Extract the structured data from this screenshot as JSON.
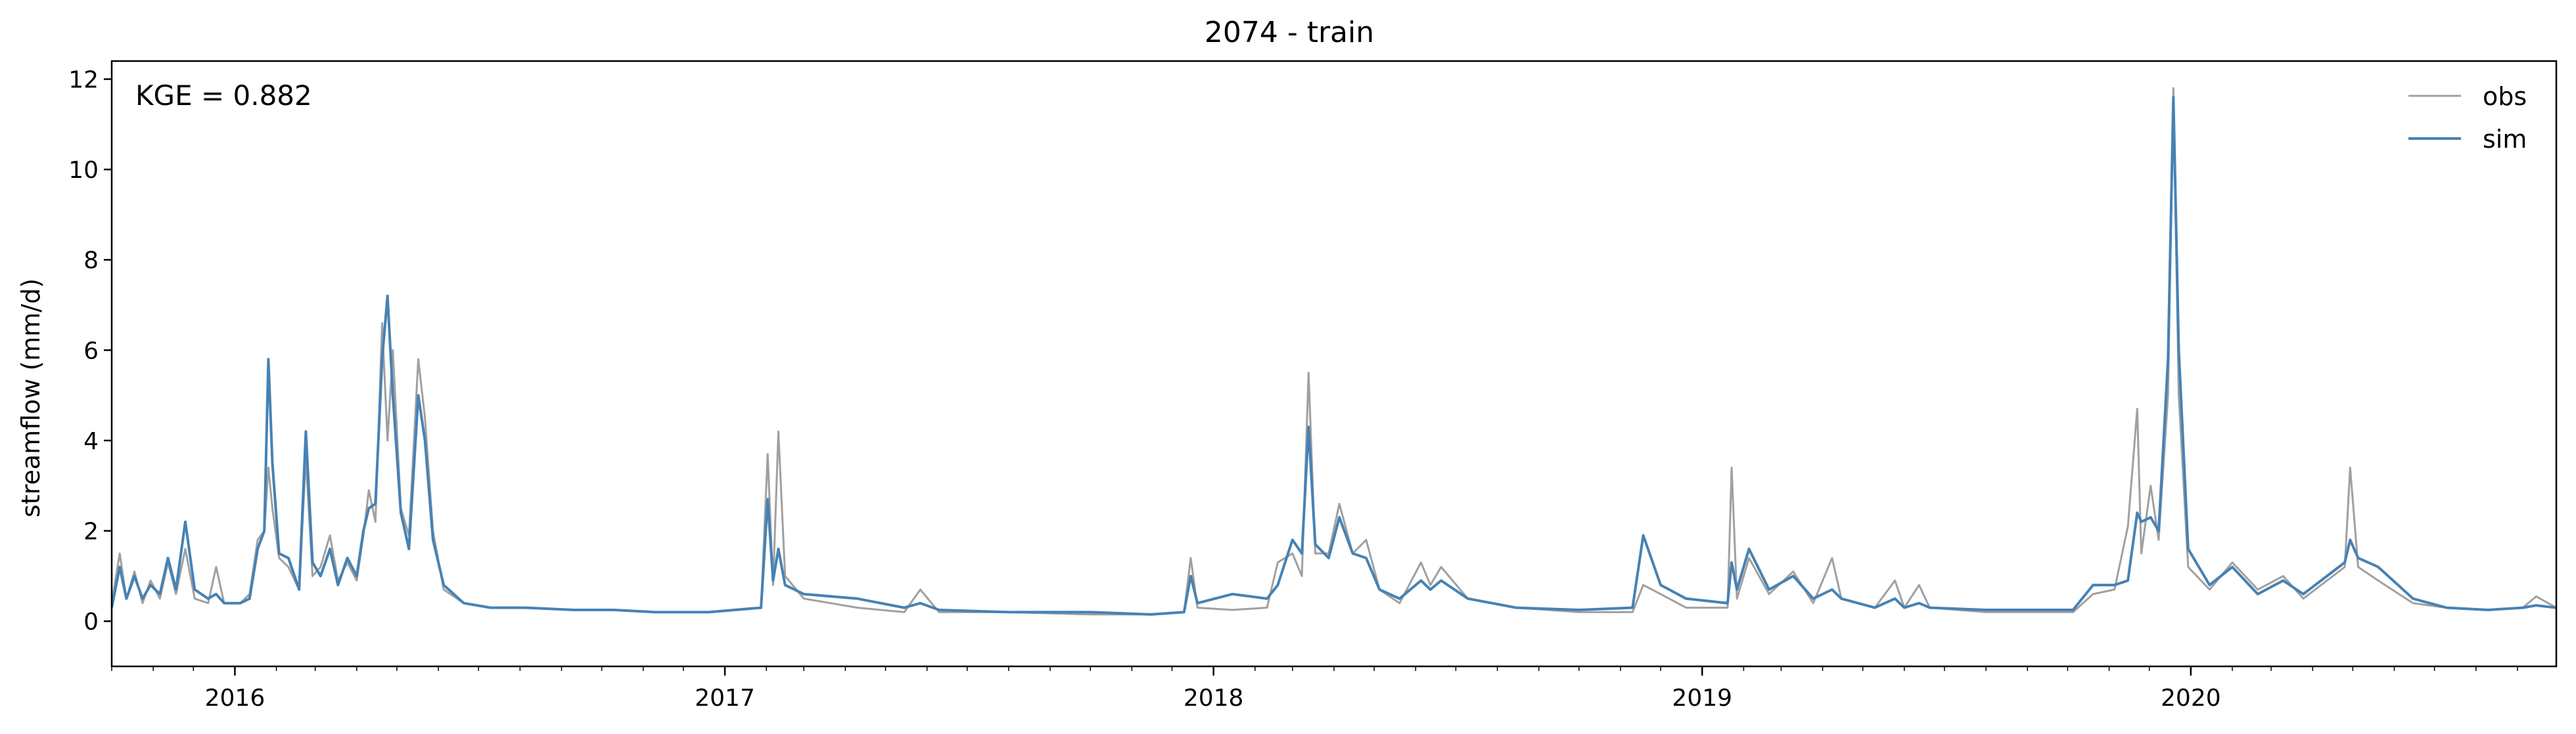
{
  "chart_data": {
    "type": "line",
    "title": "2074 - train",
    "xlabel": "",
    "ylabel": "streamflow (mm/d)",
    "annotation": "KGE = 0.882",
    "xlim": [
      "2015-10-01",
      "2020-09-30"
    ],
    "ylim": [
      -1,
      12.4
    ],
    "x_ticks": [
      "2016-01-01",
      "2017-01-01",
      "2018-01-01",
      "2019-01-01",
      "2020-01-01"
    ],
    "x_tick_labels": [
      "2016",
      "2017",
      "2018",
      "2019",
      "2020"
    ],
    "y_ticks": [
      0,
      2,
      4,
      6,
      8,
      10,
      12
    ],
    "grid": false,
    "legend_position": "top-right",
    "series": [
      {
        "name": "obs",
        "color": "#a0a0a0",
        "points": [
          [
            "2015-10-01",
            0.4
          ],
          [
            "2015-10-07",
            1.5
          ],
          [
            "2015-10-12",
            0.5
          ],
          [
            "2015-10-18",
            1.1
          ],
          [
            "2015-10-24",
            0.4
          ],
          [
            "2015-10-30",
            0.9
          ],
          [
            "2015-11-06",
            0.5
          ],
          [
            "2015-11-12",
            1.3
          ],
          [
            "2015-11-18",
            0.6
          ],
          [
            "2015-11-25",
            1.6
          ],
          [
            "2015-12-02",
            0.5
          ],
          [
            "2015-12-12",
            0.4
          ],
          [
            "2015-12-18",
            1.2
          ],
          [
            "2015-12-24",
            0.4
          ],
          [
            "2016-01-05",
            0.4
          ],
          [
            "2016-01-12",
            0.6
          ],
          [
            "2016-01-18",
            1.8
          ],
          [
            "2016-01-23",
            2.0
          ],
          [
            "2016-01-26",
            3.4
          ],
          [
            "2016-01-29",
            2.5
          ],
          [
            "2016-02-03",
            1.4
          ],
          [
            "2016-02-10",
            1.2
          ],
          [
            "2016-02-18",
            0.7
          ],
          [
            "2016-02-23",
            3.6
          ],
          [
            "2016-02-28",
            1.0
          ],
          [
            "2016-03-05",
            1.2
          ],
          [
            "2016-03-12",
            1.9
          ],
          [
            "2016-03-18",
            0.9
          ],
          [
            "2016-03-25",
            1.3
          ],
          [
            "2016-04-01",
            0.9
          ],
          [
            "2016-04-06",
            1.9
          ],
          [
            "2016-04-10",
            2.9
          ],
          [
            "2016-04-15",
            2.2
          ],
          [
            "2016-04-20",
            6.6
          ],
          [
            "2016-04-24",
            4.0
          ],
          [
            "2016-04-28",
            6.0
          ],
          [
            "2016-05-04",
            2.5
          ],
          [
            "2016-05-10",
            1.9
          ],
          [
            "2016-05-17",
            5.8
          ],
          [
            "2016-05-22",
            4.5
          ],
          [
            "2016-05-28",
            2.0
          ],
          [
            "2016-06-05",
            0.7
          ],
          [
            "2016-06-20",
            0.4
          ],
          [
            "2016-07-10",
            0.3
          ],
          [
            "2016-08-05",
            0.3
          ],
          [
            "2016-09-10",
            0.25
          ],
          [
            "2016-10-10",
            0.25
          ],
          [
            "2016-11-10",
            0.2
          ],
          [
            "2016-12-20",
            0.2
          ],
          [
            "2017-01-28",
            0.3
          ],
          [
            "2017-02-02",
            3.7
          ],
          [
            "2017-02-06",
            0.8
          ],
          [
            "2017-02-10",
            4.2
          ],
          [
            "2017-02-15",
            1.0
          ],
          [
            "2017-03-01",
            0.5
          ],
          [
            "2017-04-10",
            0.3
          ],
          [
            "2017-05-15",
            0.2
          ],
          [
            "2017-05-27",
            0.7
          ],
          [
            "2017-06-10",
            0.2
          ],
          [
            "2017-08-01",
            0.2
          ],
          [
            "2017-10-01",
            0.15
          ],
          [
            "2017-11-15",
            0.15
          ],
          [
            "2017-12-10",
            0.2
          ],
          [
            "2017-12-15",
            1.4
          ],
          [
            "2017-12-20",
            0.3
          ],
          [
            "2018-01-15",
            0.25
          ],
          [
            "2018-02-10",
            0.3
          ],
          [
            "2018-02-18",
            1.3
          ],
          [
            "2018-03-01",
            1.5
          ],
          [
            "2018-03-08",
            1.0
          ],
          [
            "2018-03-13",
            5.5
          ],
          [
            "2018-03-18",
            1.5
          ],
          [
            "2018-03-28",
            1.5
          ],
          [
            "2018-04-05",
            2.6
          ],
          [
            "2018-04-15",
            1.5
          ],
          [
            "2018-04-25",
            1.8
          ],
          [
            "2018-05-05",
            0.7
          ],
          [
            "2018-05-20",
            0.4
          ],
          [
            "2018-06-05",
            1.3
          ],
          [
            "2018-06-12",
            0.8
          ],
          [
            "2018-06-20",
            1.2
          ],
          [
            "2018-07-10",
            0.5
          ],
          [
            "2018-08-15",
            0.3
          ],
          [
            "2018-10-01",
            0.2
          ],
          [
            "2018-11-10",
            0.2
          ],
          [
            "2018-11-18",
            0.8
          ],
          [
            "2018-12-01",
            0.6
          ],
          [
            "2018-12-20",
            0.3
          ],
          [
            "2019-01-20",
            0.3
          ],
          [
            "2019-01-23",
            3.4
          ],
          [
            "2019-01-27",
            0.5
          ],
          [
            "2019-02-05",
            1.4
          ],
          [
            "2019-02-20",
            0.6
          ],
          [
            "2019-03-10",
            1.1
          ],
          [
            "2019-03-25",
            0.4
          ],
          [
            "2019-04-08",
            1.4
          ],
          [
            "2019-04-15",
            0.5
          ],
          [
            "2019-05-10",
            0.3
          ],
          [
            "2019-05-25",
            0.9
          ],
          [
            "2019-06-01",
            0.3
          ],
          [
            "2019-06-12",
            0.8
          ],
          [
            "2019-06-20",
            0.3
          ],
          [
            "2019-08-01",
            0.2
          ],
          [
            "2019-10-05",
            0.2
          ],
          [
            "2019-10-20",
            0.6
          ],
          [
            "2019-11-05",
            0.7
          ],
          [
            "2019-11-15",
            2.1
          ],
          [
            "2019-11-22",
            4.7
          ],
          [
            "2019-11-25",
            1.5
          ],
          [
            "2019-12-02",
            3.0
          ],
          [
            "2019-12-08",
            1.8
          ],
          [
            "2019-12-15",
            5.0
          ],
          [
            "2019-12-19",
            11.8
          ],
          [
            "2019-12-23",
            5.0
          ],
          [
            "2019-12-30",
            1.2
          ],
          [
            "2020-01-15",
            0.7
          ],
          [
            "2020-02-01",
            1.3
          ],
          [
            "2020-02-20",
            0.7
          ],
          [
            "2020-03-10",
            1.0
          ],
          [
            "2020-03-25",
            0.5
          ],
          [
            "2020-04-25",
            1.2
          ],
          [
            "2020-04-29",
            3.4
          ],
          [
            "2020-05-05",
            1.2
          ],
          [
            "2020-05-20",
            0.9
          ],
          [
            "2020-06-15",
            0.4
          ],
          [
            "2020-07-10",
            0.3
          ],
          [
            "2020-08-10",
            0.25
          ],
          [
            "2020-09-05",
            0.3
          ],
          [
            "2020-09-15",
            0.55
          ],
          [
            "2020-09-30",
            0.3
          ]
        ]
      },
      {
        "name": "sim",
        "color": "#4682b4",
        "points": [
          [
            "2015-10-01",
            0.3
          ],
          [
            "2015-10-07",
            1.2
          ],
          [
            "2015-10-12",
            0.5
          ],
          [
            "2015-10-18",
            1.0
          ],
          [
            "2015-10-24",
            0.5
          ],
          [
            "2015-10-30",
            0.8
          ],
          [
            "2015-11-06",
            0.6
          ],
          [
            "2015-11-12",
            1.4
          ],
          [
            "2015-11-18",
            0.7
          ],
          [
            "2015-11-25",
            2.2
          ],
          [
            "2015-12-02",
            0.7
          ],
          [
            "2015-12-12",
            0.5
          ],
          [
            "2015-12-18",
            0.6
          ],
          [
            "2015-12-24",
            0.4
          ],
          [
            "2016-01-05",
            0.4
          ],
          [
            "2016-01-12",
            0.5
          ],
          [
            "2016-01-18",
            1.6
          ],
          [
            "2016-01-23",
            2.0
          ],
          [
            "2016-01-26",
            5.8
          ],
          [
            "2016-01-29",
            3.5
          ],
          [
            "2016-02-03",
            1.5
          ],
          [
            "2016-02-10",
            1.4
          ],
          [
            "2016-02-18",
            0.7
          ],
          [
            "2016-02-23",
            4.2
          ],
          [
            "2016-02-28",
            1.3
          ],
          [
            "2016-03-05",
            1.0
          ],
          [
            "2016-03-12",
            1.6
          ],
          [
            "2016-03-18",
            0.8
          ],
          [
            "2016-03-25",
            1.4
          ],
          [
            "2016-04-01",
            1.0
          ],
          [
            "2016-04-06",
            2.0
          ],
          [
            "2016-04-10",
            2.5
          ],
          [
            "2016-04-15",
            2.6
          ],
          [
            "2016-04-20",
            5.8
          ],
          [
            "2016-04-24",
            7.2
          ],
          [
            "2016-04-28",
            5.0
          ],
          [
            "2016-05-04",
            2.4
          ],
          [
            "2016-05-10",
            1.6
          ],
          [
            "2016-05-17",
            5.0
          ],
          [
            "2016-05-22",
            4.0
          ],
          [
            "2016-05-28",
            1.8
          ],
          [
            "2016-06-05",
            0.8
          ],
          [
            "2016-06-20",
            0.4
          ],
          [
            "2016-07-10",
            0.3
          ],
          [
            "2016-08-05",
            0.3
          ],
          [
            "2016-09-10",
            0.25
          ],
          [
            "2016-10-10",
            0.25
          ],
          [
            "2016-11-10",
            0.2
          ],
          [
            "2016-12-20",
            0.2
          ],
          [
            "2017-01-28",
            0.3
          ],
          [
            "2017-02-02",
            2.7
          ],
          [
            "2017-02-06",
            0.9
          ],
          [
            "2017-02-10",
            1.6
          ],
          [
            "2017-02-15",
            0.8
          ],
          [
            "2017-03-01",
            0.6
          ],
          [
            "2017-04-10",
            0.5
          ],
          [
            "2017-05-15",
            0.3
          ],
          [
            "2017-05-27",
            0.4
          ],
          [
            "2017-06-10",
            0.25
          ],
          [
            "2017-08-01",
            0.2
          ],
          [
            "2017-10-01",
            0.2
          ],
          [
            "2017-11-15",
            0.15
          ],
          [
            "2017-12-10",
            0.2
          ],
          [
            "2017-12-15",
            1.0
          ],
          [
            "2017-12-20",
            0.4
          ],
          [
            "2018-01-15",
            0.6
          ],
          [
            "2018-02-10",
            0.5
          ],
          [
            "2018-02-18",
            0.8
          ],
          [
            "2018-03-01",
            1.8
          ],
          [
            "2018-03-08",
            1.5
          ],
          [
            "2018-03-13",
            4.3
          ],
          [
            "2018-03-18",
            1.7
          ],
          [
            "2018-03-28",
            1.4
          ],
          [
            "2018-04-05",
            2.3
          ],
          [
            "2018-04-15",
            1.5
          ],
          [
            "2018-04-25",
            1.4
          ],
          [
            "2018-05-05",
            0.7
          ],
          [
            "2018-05-20",
            0.5
          ],
          [
            "2018-06-05",
            0.9
          ],
          [
            "2018-06-12",
            0.7
          ],
          [
            "2018-06-20",
            0.9
          ],
          [
            "2018-07-10",
            0.5
          ],
          [
            "2018-08-15",
            0.3
          ],
          [
            "2018-10-01",
            0.25
          ],
          [
            "2018-11-10",
            0.3
          ],
          [
            "2018-11-18",
            1.9
          ],
          [
            "2018-12-01",
            0.8
          ],
          [
            "2018-12-20",
            0.5
          ],
          [
            "2019-01-20",
            0.4
          ],
          [
            "2019-01-23",
            1.3
          ],
          [
            "2019-01-27",
            0.7
          ],
          [
            "2019-02-05",
            1.6
          ],
          [
            "2019-02-20",
            0.7
          ],
          [
            "2019-03-10",
            1.0
          ],
          [
            "2019-03-25",
            0.5
          ],
          [
            "2019-04-08",
            0.7
          ],
          [
            "2019-04-15",
            0.5
          ],
          [
            "2019-05-10",
            0.3
          ],
          [
            "2019-05-25",
            0.5
          ],
          [
            "2019-06-01",
            0.3
          ],
          [
            "2019-06-12",
            0.4
          ],
          [
            "2019-06-20",
            0.3
          ],
          [
            "2019-08-01",
            0.25
          ],
          [
            "2019-10-05",
            0.25
          ],
          [
            "2019-10-20",
            0.8
          ],
          [
            "2019-11-05",
            0.8
          ],
          [
            "2019-11-15",
            0.9
          ],
          [
            "2019-11-22",
            2.4
          ],
          [
            "2019-11-25",
            2.2
          ],
          [
            "2019-12-02",
            2.3
          ],
          [
            "2019-12-08",
            2.0
          ],
          [
            "2019-12-15",
            5.8
          ],
          [
            "2019-12-19",
            11.6
          ],
          [
            "2019-12-23",
            6.0
          ],
          [
            "2019-12-30",
            1.6
          ],
          [
            "2020-01-15",
            0.8
          ],
          [
            "2020-02-01",
            1.2
          ],
          [
            "2020-02-20",
            0.6
          ],
          [
            "2020-03-10",
            0.9
          ],
          [
            "2020-03-25",
            0.6
          ],
          [
            "2020-04-25",
            1.3
          ],
          [
            "2020-04-29",
            1.8
          ],
          [
            "2020-05-05",
            1.4
          ],
          [
            "2020-05-20",
            1.2
          ],
          [
            "2020-06-15",
            0.5
          ],
          [
            "2020-07-10",
            0.3
          ],
          [
            "2020-08-10",
            0.25
          ],
          [
            "2020-09-05",
            0.3
          ],
          [
            "2020-09-15",
            0.35
          ],
          [
            "2020-09-30",
            0.3
          ]
        ]
      }
    ]
  }
}
